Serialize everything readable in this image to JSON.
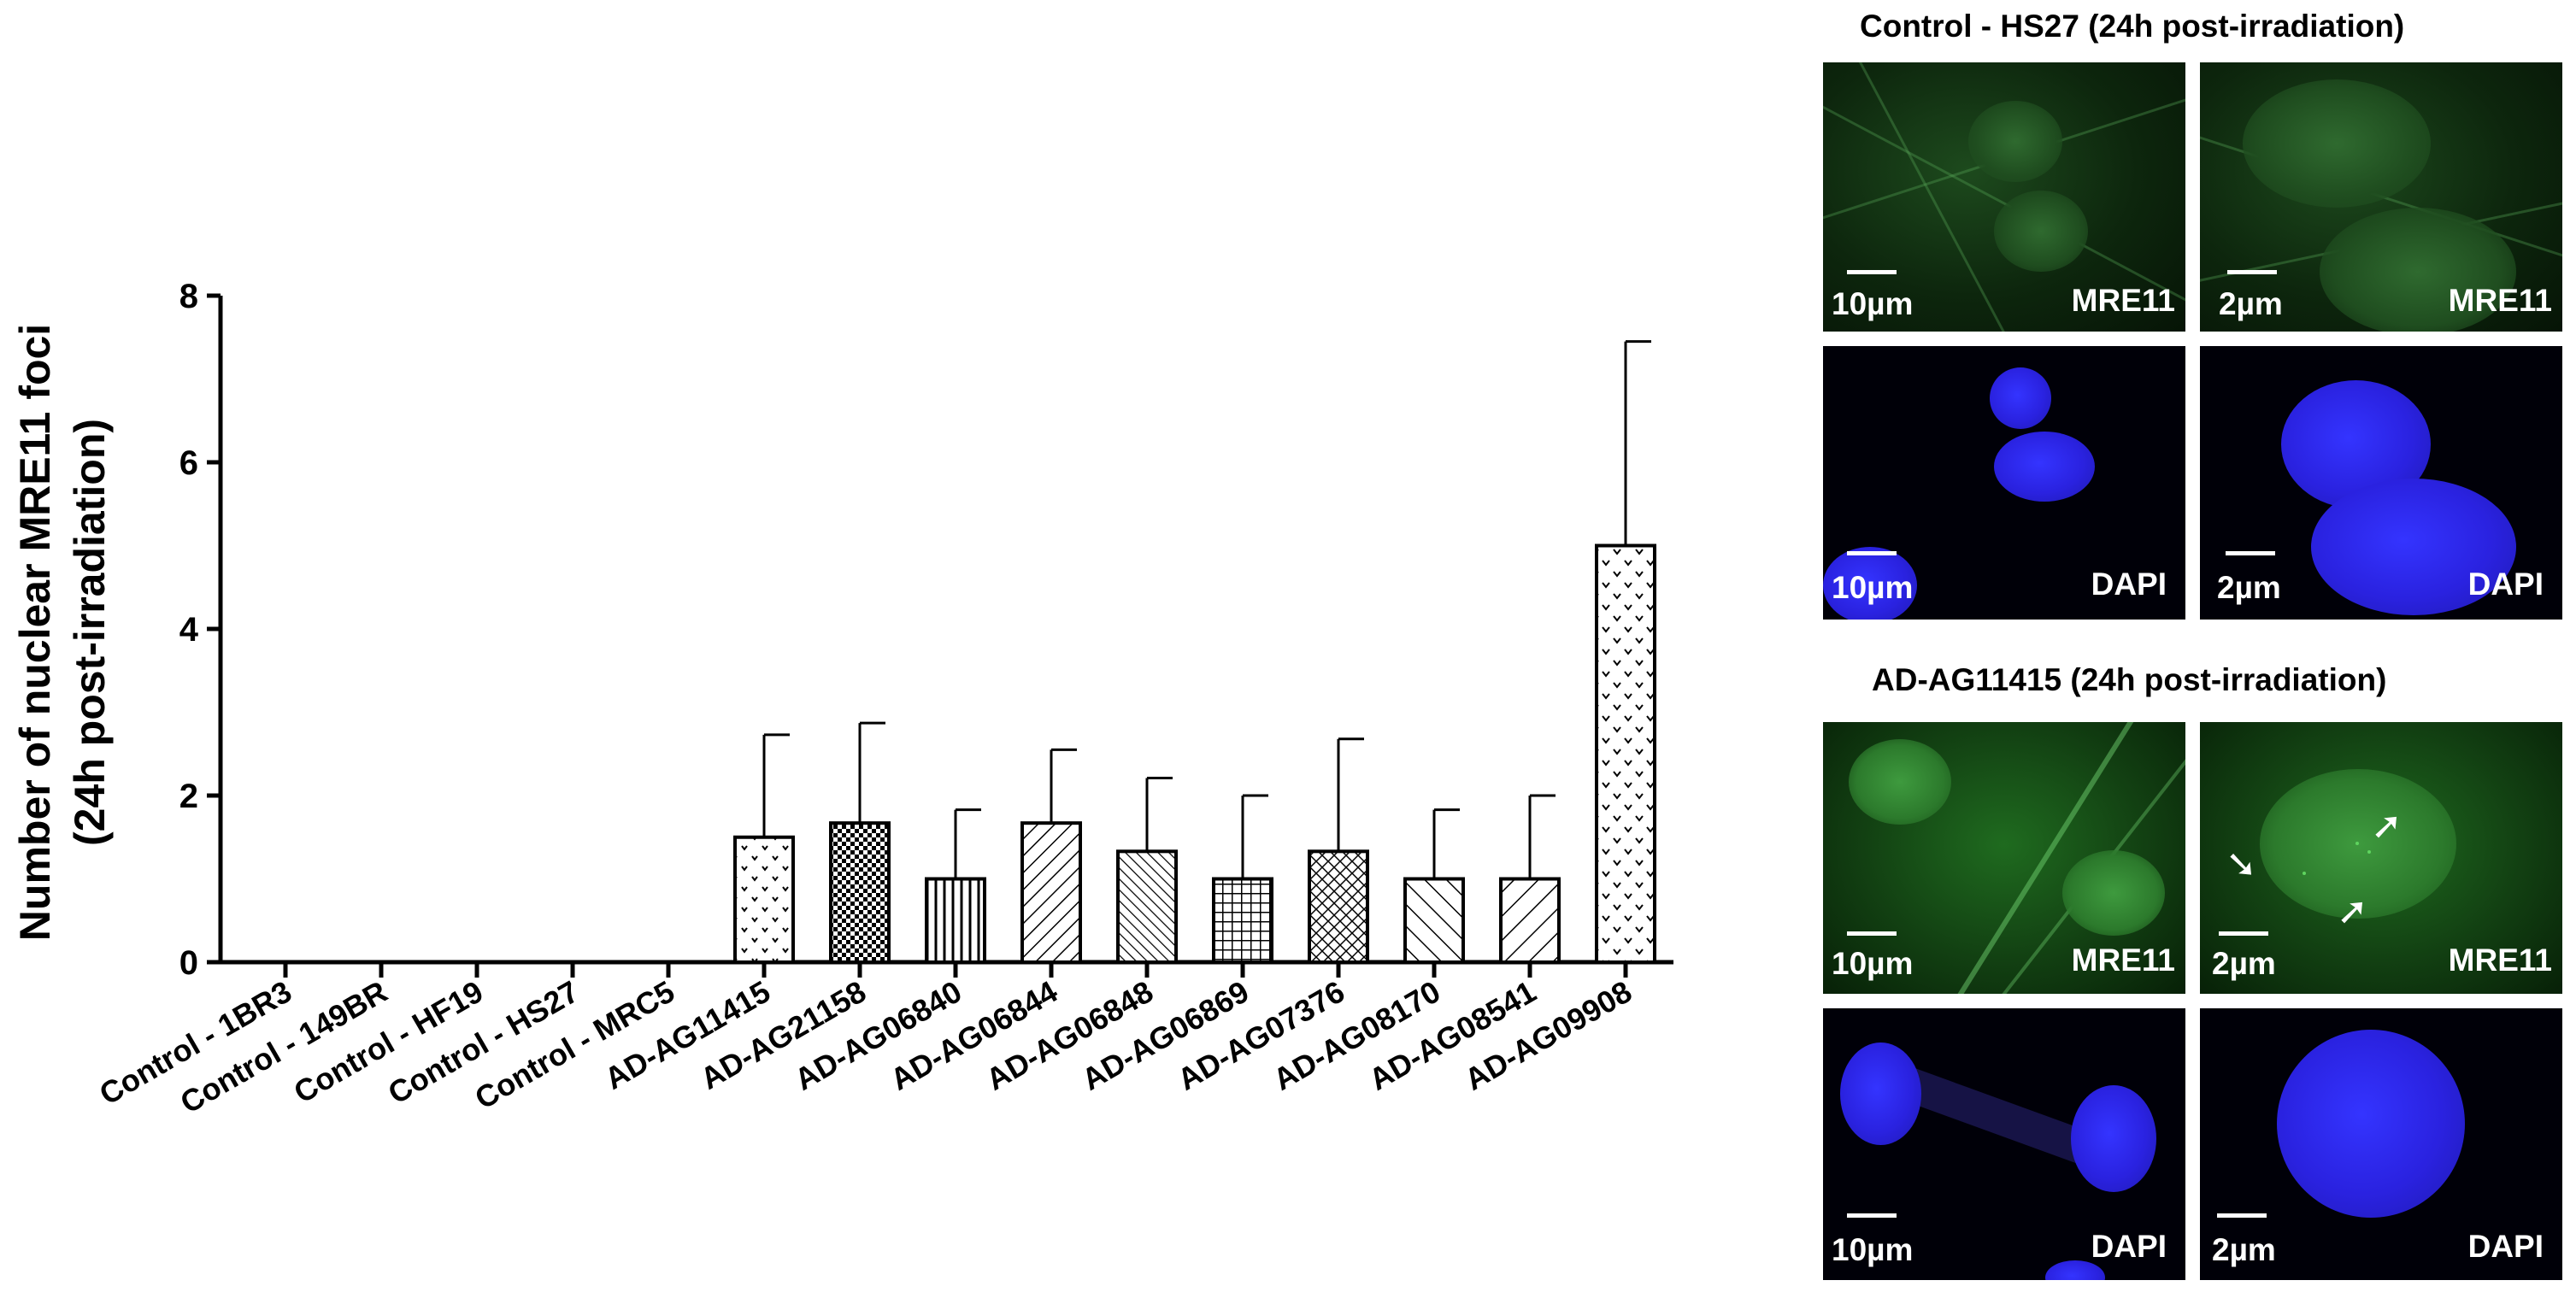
{
  "chart_data": {
    "type": "bar",
    "ylabel_line1": "Number of nuclear MRE11 foci",
    "ylabel_line2": "(24h post-irradiation)",
    "ylim": [
      0,
      8
    ],
    "yticks": [
      0,
      2,
      4,
      6,
      8
    ],
    "categories": [
      "Control - 1BR3",
      "Control - 149BR",
      "Control - HF19",
      "Control - HS27",
      "Control - MRC5",
      "AD-AG11415",
      "AD-AG21158",
      "AD-AG06840",
      "AD-AG06844",
      "AD-AG06848",
      "AD-AG06869",
      "AD-AG07376",
      "AD-AG08170",
      "AD-AG08541",
      "AD-AG09908"
    ],
    "values": [
      0,
      0,
      0,
      0,
      0,
      1.5,
      1.67,
      1.0,
      1.67,
      1.33,
      1.0,
      1.33,
      1.0,
      1.0,
      5.0
    ],
    "errors": [
      0,
      0,
      0,
      0,
      0,
      1.23,
      1.2,
      0.83,
      0.88,
      0.88,
      1.0,
      1.35,
      0.83,
      1.0,
      2.45
    ],
    "patterns": [
      "none",
      "none",
      "none",
      "none",
      "none",
      "dots",
      "checker",
      "vlines",
      "diag-right",
      "diag-left-dense",
      "grid",
      "crosshatch",
      "diag-left",
      "diag-right-wide",
      "chevrons"
    ]
  },
  "panels": {
    "control": {
      "title": "Control - HS27 (24h post-irradiation)",
      "mre11_low": {
        "scale": "10µm",
        "channel": "MRE11"
      },
      "mre11_high": {
        "scale": "2µm",
        "channel": "MRE11"
      },
      "dapi_low": {
        "scale": "10µm",
        "channel": "DAPI"
      },
      "dapi_high": {
        "scale": "2µm",
        "channel": "DAPI"
      }
    },
    "ad": {
      "title": "AD-AG11415 (24h post-irradiation)",
      "mre11_low": {
        "scale": "10µm",
        "channel": "MRE11"
      },
      "mre11_high": {
        "scale": "2µm",
        "channel": "MRE11"
      },
      "dapi_low": {
        "scale": "10µm",
        "channel": "DAPI"
      },
      "dapi_high": {
        "scale": "2µm",
        "channel": "DAPI"
      }
    }
  },
  "colors": {
    "mre11": "#2f8f2f",
    "dapi": "#2a22e0",
    "bars": "#000000"
  }
}
